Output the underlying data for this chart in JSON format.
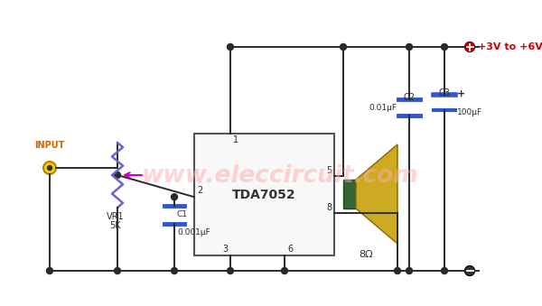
{
  "bg_color": "#ffffff",
  "wire_color": "#2a2a2a",
  "ic_fill": "#f8f8f8",
  "ic_border": "#555555",
  "watermark_color": "#ffaaaa",
  "watermark_text": "www.eleccircuit.com",
  "title_voltage": "+3V to +6V",
  "ic_label": "TDA7052",
  "vr_label1": "VR1",
  "vr_label2": "5K",
  "c1_label1": "C1",
  "c1_label2": "0.001μF",
  "c2_label1": "C2",
  "c2_label2": "0.01μF",
  "c3_label1": "C3",
  "c3_label2": "100μF",
  "speaker_label": "8Ω",
  "input_label": "INPUT",
  "pin1": "1",
  "pin2": "2",
  "pin3": "3",
  "pin5": "5",
  "pin6": "6",
  "pin8": "8",
  "cap_color": "#3355cc",
  "vr_color": "#6666cc",
  "arrow_color": "#cc00cc",
  "input_fill": "#ffcc00",
  "input_edge": "#aa8800",
  "pwr_fill": "#cc0000",
  "pwr_text_color": "#cc0000",
  "spk_cone_color": "#ccaa22",
  "spk_body_color": "#336633",
  "gnd_fill": "#333333"
}
